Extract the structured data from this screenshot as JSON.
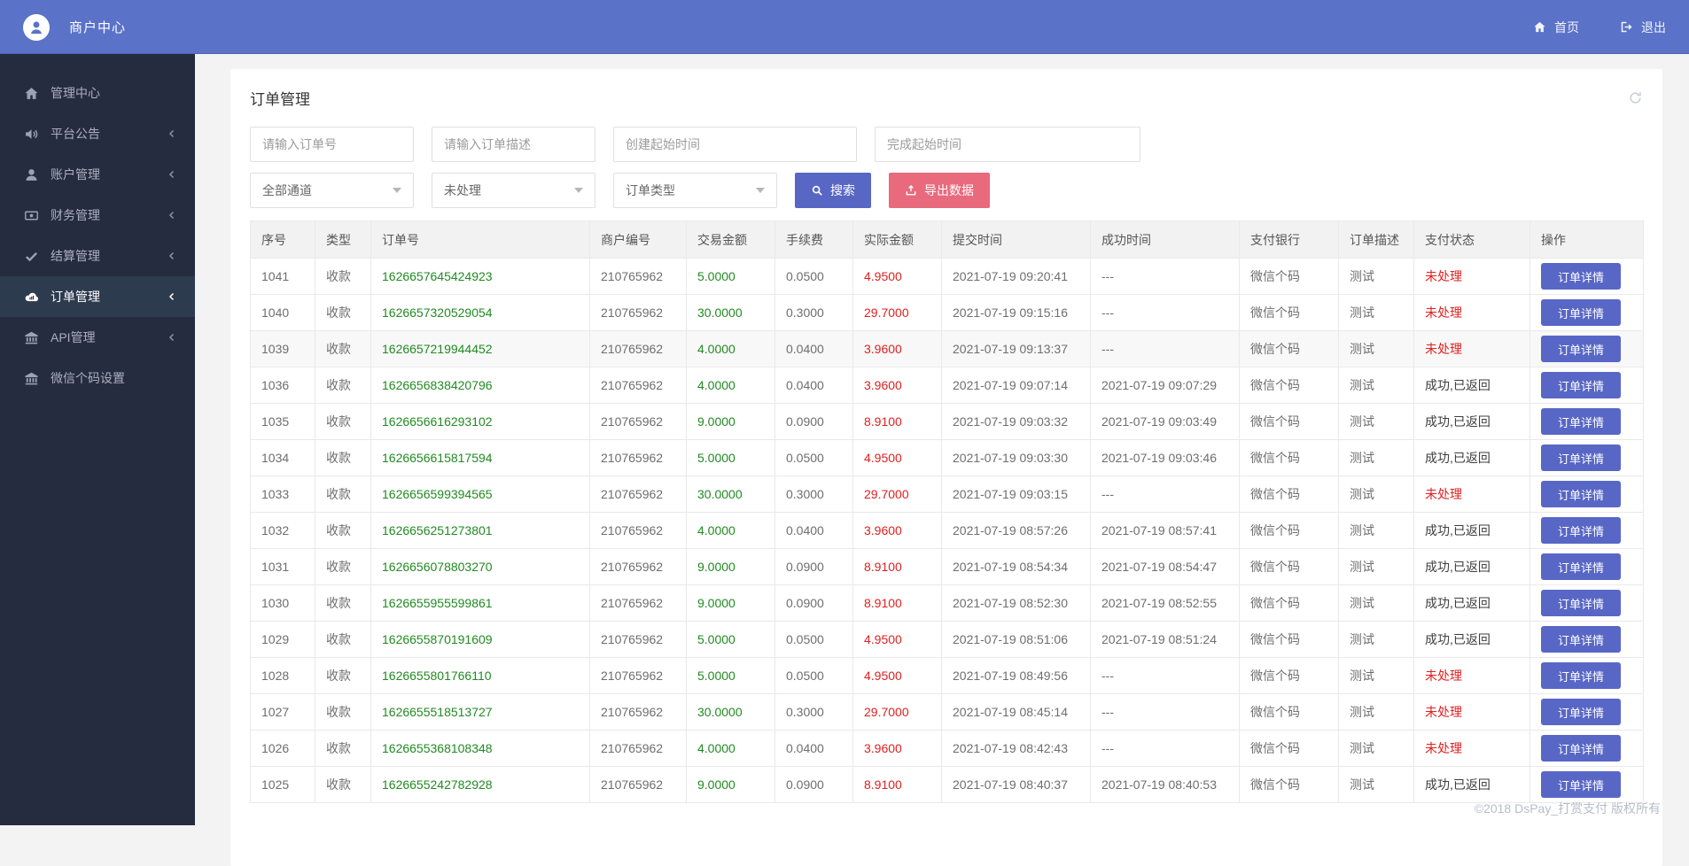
{
  "topbar": {
    "brand": "商户中心",
    "home_label": "首页",
    "logout_label": "退出"
  },
  "sidebar": {
    "items": [
      {
        "label": "管理中心",
        "icon": "home",
        "chevron": false,
        "active": false
      },
      {
        "label": "平台公告",
        "icon": "volume",
        "chevron": true,
        "active": false
      },
      {
        "label": "账户管理",
        "icon": "user",
        "chevron": true,
        "active": false
      },
      {
        "label": "财务管理",
        "icon": "money",
        "chevron": true,
        "active": false
      },
      {
        "label": "结算管理",
        "icon": "check",
        "chevron": true,
        "active": false
      },
      {
        "label": "订单管理",
        "icon": "cloud",
        "chevron": true,
        "active": true
      },
      {
        "label": "API管理",
        "icon": "bank",
        "chevron": true,
        "active": false
      },
      {
        "label": "微信个码设置",
        "icon": "bank",
        "chevron": false,
        "active": false
      }
    ]
  },
  "page": {
    "title": "订单管理"
  },
  "filters": {
    "order_no_placeholder": "请输入订单号",
    "order_desc_placeholder": "请输入订单描述",
    "create_time_placeholder": "创建起始时间",
    "finish_time_placeholder": "完成起始时间",
    "channel_value": "全部通道",
    "status_value": "未处理",
    "type_value": "订单类型",
    "search_label": "搜索",
    "export_label": "导出数据"
  },
  "table": {
    "headers": [
      "序号",
      "类型",
      "订单号",
      "商户编号",
      "交易金额",
      "手续费",
      "实际金额",
      "提交时间",
      "成功时间",
      "支付银行",
      "订单描述",
      "支付状态",
      "操作"
    ],
    "action_label": "订单详情",
    "rows": [
      {
        "seq": "1041",
        "type": "收款",
        "order_no": "1626657645424923",
        "merchant": "210765962",
        "amount": "5.0000",
        "fee": "0.0500",
        "actual": "4.9500",
        "submit": "2021-07-19 09:20:41",
        "success": "---",
        "bank": "微信个码",
        "desc": "测试",
        "status": "未处理",
        "status_type": "pending",
        "highlighted": false
      },
      {
        "seq": "1040",
        "type": "收款",
        "order_no": "1626657320529054",
        "merchant": "210765962",
        "amount": "30.0000",
        "fee": "0.3000",
        "actual": "29.7000",
        "submit": "2021-07-19 09:15:16",
        "success": "---",
        "bank": "微信个码",
        "desc": "测试",
        "status": "未处理",
        "status_type": "pending",
        "highlighted": false
      },
      {
        "seq": "1039",
        "type": "收款",
        "order_no": "1626657219944452",
        "merchant": "210765962",
        "amount": "4.0000",
        "fee": "0.0400",
        "actual": "3.9600",
        "submit": "2021-07-19 09:13:37",
        "success": "---",
        "bank": "微信个码",
        "desc": "测试",
        "status": "未处理",
        "status_type": "pending",
        "highlighted": true
      },
      {
        "seq": "1036",
        "type": "收款",
        "order_no": "1626656838420796",
        "merchant": "210765962",
        "amount": "4.0000",
        "fee": "0.0400",
        "actual": "3.9600",
        "submit": "2021-07-19 09:07:14",
        "success": "2021-07-19 09:07:29",
        "bank": "微信个码",
        "desc": "测试",
        "status": "成功,已返回",
        "status_type": "success",
        "highlighted": false
      },
      {
        "seq": "1035",
        "type": "收款",
        "order_no": "1626656616293102",
        "merchant": "210765962",
        "amount": "9.0000",
        "fee": "0.0900",
        "actual": "8.9100",
        "submit": "2021-07-19 09:03:32",
        "success": "2021-07-19 09:03:49",
        "bank": "微信个码",
        "desc": "测试",
        "status": "成功,已返回",
        "status_type": "success",
        "highlighted": false
      },
      {
        "seq": "1034",
        "type": "收款",
        "order_no": "1626656615817594",
        "merchant": "210765962",
        "amount": "5.0000",
        "fee": "0.0500",
        "actual": "4.9500",
        "submit": "2021-07-19 09:03:30",
        "success": "2021-07-19 09:03:46",
        "bank": "微信个码",
        "desc": "测试",
        "status": "成功,已返回",
        "status_type": "success",
        "highlighted": false
      },
      {
        "seq": "1033",
        "type": "收款",
        "order_no": "1626656599394565",
        "merchant": "210765962",
        "amount": "30.0000",
        "fee": "0.3000",
        "actual": "29.7000",
        "submit": "2021-07-19 09:03:15",
        "success": "---",
        "bank": "微信个码",
        "desc": "测试",
        "status": "未处理",
        "status_type": "pending",
        "highlighted": false
      },
      {
        "seq": "1032",
        "type": "收款",
        "order_no": "1626656251273801",
        "merchant": "210765962",
        "amount": "4.0000",
        "fee": "0.0400",
        "actual": "3.9600",
        "submit": "2021-07-19 08:57:26",
        "success": "2021-07-19 08:57:41",
        "bank": "微信个码",
        "desc": "测试",
        "status": "成功,已返回",
        "status_type": "success",
        "highlighted": false
      },
      {
        "seq": "1031",
        "type": "收款",
        "order_no": "1626656078803270",
        "merchant": "210765962",
        "amount": "9.0000",
        "fee": "0.0900",
        "actual": "8.9100",
        "submit": "2021-07-19 08:54:34",
        "success": "2021-07-19 08:54:47",
        "bank": "微信个码",
        "desc": "测试",
        "status": "成功,已返回",
        "status_type": "success",
        "highlighted": false
      },
      {
        "seq": "1030",
        "type": "收款",
        "order_no": "1626655955599861",
        "merchant": "210765962",
        "amount": "9.0000",
        "fee": "0.0900",
        "actual": "8.9100",
        "submit": "2021-07-19 08:52:30",
        "success": "2021-07-19 08:52:55",
        "bank": "微信个码",
        "desc": "测试",
        "status": "成功,已返回",
        "status_type": "success",
        "highlighted": false
      },
      {
        "seq": "1029",
        "type": "收款",
        "order_no": "1626655870191609",
        "merchant": "210765962",
        "amount": "5.0000",
        "fee": "0.0500",
        "actual": "4.9500",
        "submit": "2021-07-19 08:51:06",
        "success": "2021-07-19 08:51:24",
        "bank": "微信个码",
        "desc": "测试",
        "status": "成功,已返回",
        "status_type": "success",
        "highlighted": false
      },
      {
        "seq": "1028",
        "type": "收款",
        "order_no": "1626655801766110",
        "merchant": "210765962",
        "amount": "5.0000",
        "fee": "0.0500",
        "actual": "4.9500",
        "submit": "2021-07-19 08:49:56",
        "success": "---",
        "bank": "微信个码",
        "desc": "测试",
        "status": "未处理",
        "status_type": "pending",
        "highlighted": false
      },
      {
        "seq": "1027",
        "type": "收款",
        "order_no": "1626655518513727",
        "merchant": "210765962",
        "amount": "30.0000",
        "fee": "0.3000",
        "actual": "29.7000",
        "submit": "2021-07-19 08:45:14",
        "success": "---",
        "bank": "微信个码",
        "desc": "测试",
        "status": "未处理",
        "status_type": "pending",
        "highlighted": false
      },
      {
        "seq": "1026",
        "type": "收款",
        "order_no": "1626655368108348",
        "merchant": "210765962",
        "amount": "4.0000",
        "fee": "0.0400",
        "actual": "3.9600",
        "submit": "2021-07-19 08:42:43",
        "success": "---",
        "bank": "微信个码",
        "desc": "测试",
        "status": "未处理",
        "status_type": "pending",
        "highlighted": false
      },
      {
        "seq": "1025",
        "type": "收款",
        "order_no": "1626655242782928",
        "merchant": "210765962",
        "amount": "9.0000",
        "fee": "0.0900",
        "actual": "8.9100",
        "submit": "2021-07-19 08:40:37",
        "success": "2021-07-19 08:40:53",
        "bank": "微信个码",
        "desc": "测试",
        "status": "成功,已返回",
        "status_type": "success",
        "highlighted": false
      }
    ]
  },
  "footer": {
    "copyright": "©2018 DsPay_打赏支付 版权所有"
  },
  "colors": {
    "topbar_blue": "#5a72c8",
    "sidebar_dark": "#262c40",
    "sidebar_active": "#2d3b4f",
    "accent_button_blue": "#5867c4",
    "export_pink": "#e9697d",
    "success_green": "#218a21",
    "danger_red": "#e01f1f"
  }
}
